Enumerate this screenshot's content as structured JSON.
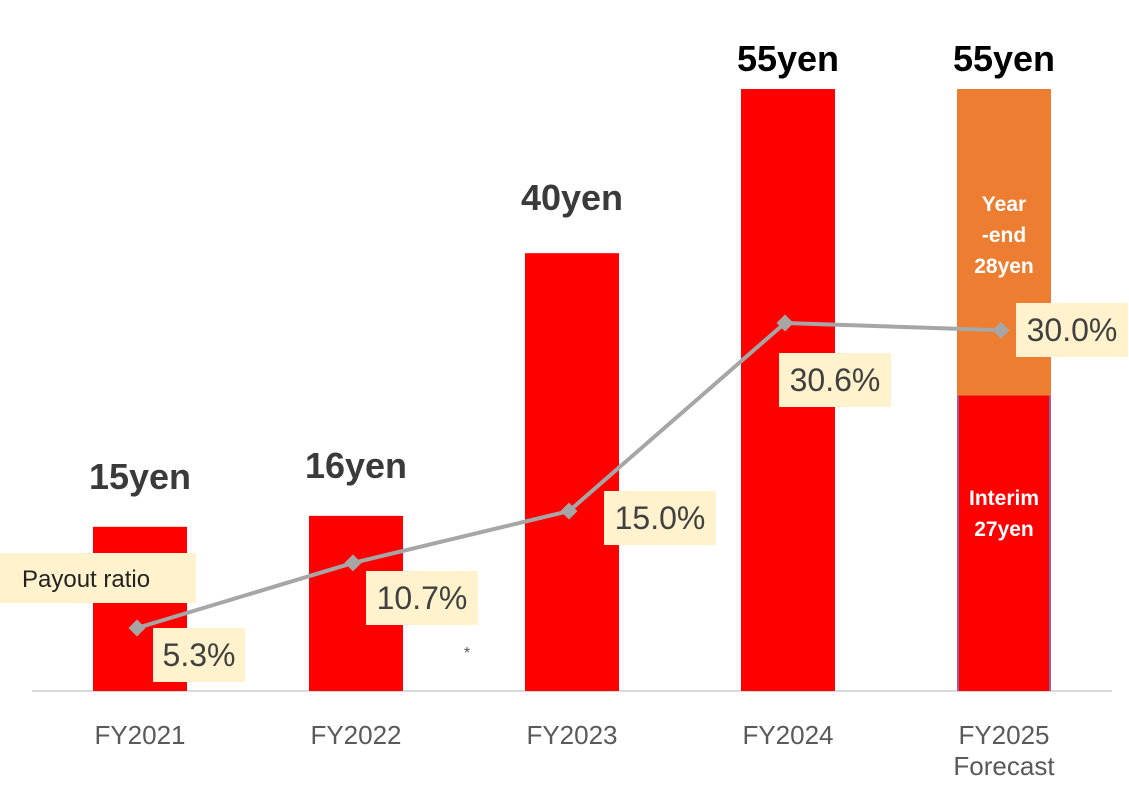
{
  "chart_data": {
    "type": "bar",
    "categories": [
      [
        "FY2021"
      ],
      [
        "FY2022"
      ],
      [
        "FY2023"
      ],
      [
        "FY2024"
      ],
      [
        "FY2025",
        "Forecast"
      ]
    ],
    "bars": [
      {
        "total": 15,
        "total_label": "15yen"
      },
      {
        "total": 16,
        "total_label": "16yen"
      },
      {
        "total": 40,
        "total_label": "40yen"
      },
      {
        "total": 55,
        "total_label": "55yen"
      },
      {
        "total": 55,
        "total_label": "55yen",
        "segments": [
          {
            "value": 27,
            "label_lines": [
              "Interim",
              "27yen"
            ]
          },
          {
            "value": 28,
            "label_lines": [
              "Year",
              "-end",
              "28yen"
            ]
          }
        ]
      }
    ],
    "payout_ratio": {
      "name": "Payout ratio",
      "values": [
        5.3,
        10.7,
        15.0,
        30.6,
        30.0
      ],
      "labels": [
        "5.3%",
        "10.7%",
        "15.0%",
        "30.6%",
        "30.0%"
      ]
    },
    "note_mark": "*",
    "colors": {
      "bar": "#ff0000",
      "year_end": "#ed7d31",
      "line": "#a6a6a6",
      "label_bg": "#fff2cc",
      "axis": "#d9d9d9"
    },
    "ylim": [
      0,
      55
    ],
    "grid": false
  }
}
